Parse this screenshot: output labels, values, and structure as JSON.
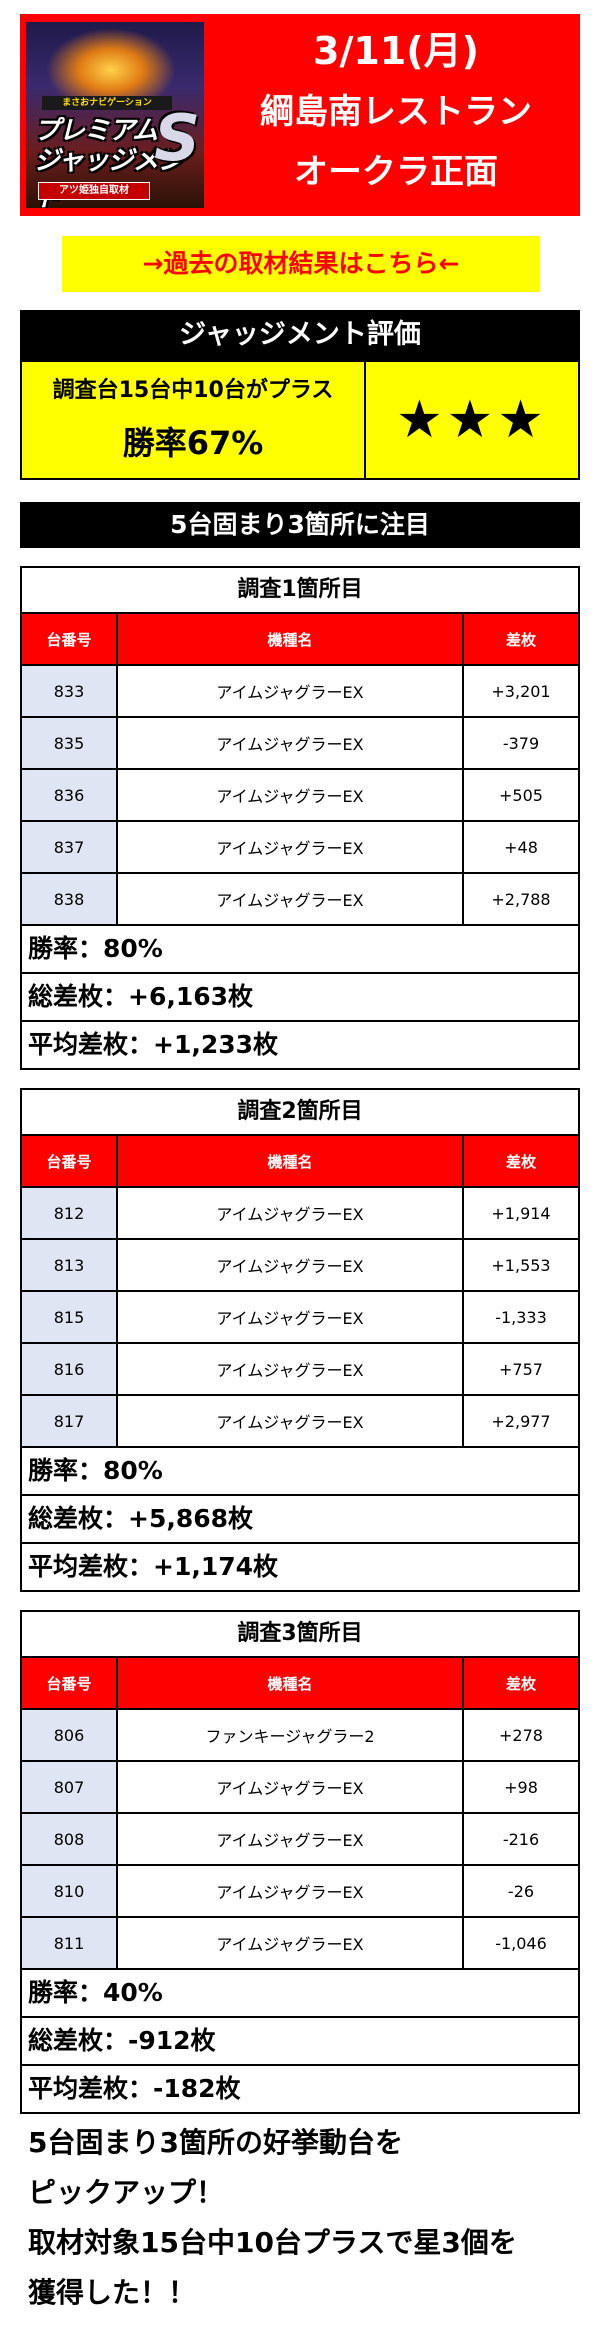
{
  "header": {
    "logo": {
      "subtitle": "まさおナビゲーション",
      "line1": "プレミアム",
      "line2": "ジャッジメント",
      "badge": "S",
      "tag": "アツ姫独自取材"
    },
    "date": "3/11(月)",
    "store_line1": "綱島南レストラン",
    "store_line2": "オークラ正面",
    "colors": {
      "background": "#ff0000",
      "text": "#ffffff"
    }
  },
  "past_results_link": "→過去の取材結果はこちら←",
  "evaluation": {
    "title": "ジャッジメント評価",
    "summary": "調査台15台中10台がプラス",
    "win_rate": "勝率67%",
    "stars": "★★★",
    "colors": {
      "panel": "#ffff00",
      "title_bg": "#000000"
    }
  },
  "focus_banner": "5台固まり3箇所に注目",
  "table_headers": {
    "number": "台番号",
    "model": "機種名",
    "diff": "差枚"
  },
  "surveys": [
    {
      "title": "調査1箇所目",
      "rows": [
        {
          "number": "833",
          "model": "アイムジャグラーEX",
          "diff": "+3,201"
        },
        {
          "number": "835",
          "model": "アイムジャグラーEX",
          "diff": "-379"
        },
        {
          "number": "836",
          "model": "アイムジャグラーEX",
          "diff": "+505"
        },
        {
          "number": "837",
          "model": "アイムジャグラーEX",
          "diff": "+48"
        },
        {
          "number": "838",
          "model": "アイムジャグラーEX",
          "diff": "+2,788"
        }
      ],
      "win_rate": "勝率：80%",
      "total": "総差枚：+6,163枚",
      "average": "平均差枚：+1,233枚"
    },
    {
      "title": "調査2箇所目",
      "rows": [
        {
          "number": "812",
          "model": "アイムジャグラーEX",
          "diff": "+1,914"
        },
        {
          "number": "813",
          "model": "アイムジャグラーEX",
          "diff": "+1,553"
        },
        {
          "number": "815",
          "model": "アイムジャグラーEX",
          "diff": "-1,333"
        },
        {
          "number": "816",
          "model": "アイムジャグラーEX",
          "diff": "+757"
        },
        {
          "number": "817",
          "model": "アイムジャグラーEX",
          "diff": "+2,977"
        }
      ],
      "win_rate": "勝率：80%",
      "total": "総差枚：+5,868枚",
      "average": "平均差枚：+1,174枚"
    },
    {
      "title": "調査3箇所目",
      "rows": [
        {
          "number": "806",
          "model": "ファンキージャグラー2",
          "diff": "+278"
        },
        {
          "number": "807",
          "model": "アイムジャグラーEX",
          "diff": "+98"
        },
        {
          "number": "808",
          "model": "アイムジャグラーEX",
          "diff": "-216"
        },
        {
          "number": "810",
          "model": "アイムジャグラーEX",
          "diff": "-26"
        },
        {
          "number": "811",
          "model": "アイムジャグラーEX",
          "diff": "-1,046"
        }
      ],
      "win_rate": "勝率：40%",
      "total": "総差枚：-912枚",
      "average": "平均差枚：-182枚"
    }
  ],
  "footer": {
    "line1": "5台固まり3箇所の好挙動台を",
    "line2": "ピックアップ！",
    "line3": "取材対象15台中10台プラスで星3個を",
    "line4": "獲得した！！"
  }
}
